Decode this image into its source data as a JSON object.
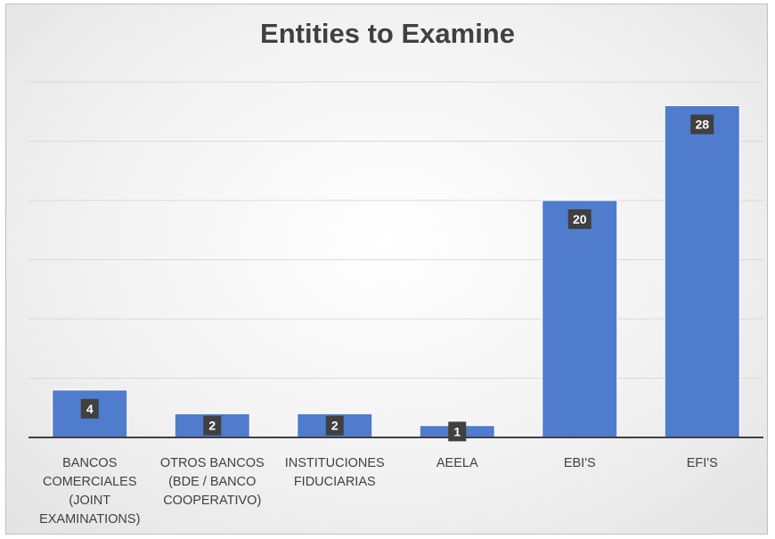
{
  "chart_data": {
    "type": "bar",
    "title": "Entities to Examine",
    "categories": [
      [
        "BANCOS",
        "COMERCIALES",
        "(JOINT",
        "EXAMINATIONS)"
      ],
      [
        "OTROS BANCOS",
        "(BDE / BANCO",
        "COOPERATIVO)"
      ],
      [
        "INSTITUCIONES",
        "FIDUCIARIAS"
      ],
      [
        "AEELA"
      ],
      [
        "EBI'S"
      ],
      [
        "EFI'S"
      ]
    ],
    "values": [
      4,
      2,
      2,
      1,
      20,
      28
    ],
    "data_labels": [
      "4",
      "2",
      "2",
      "1",
      "20",
      "28"
    ],
    "ylim": [
      0,
      30
    ],
    "grid": true,
    "legend": "none",
    "colors": {
      "bar": "#4f7ccc",
      "bar_border": "#ffffff",
      "label_box": "#404040",
      "gridline": "#d9d9d9",
      "axis": "#404040"
    }
  }
}
